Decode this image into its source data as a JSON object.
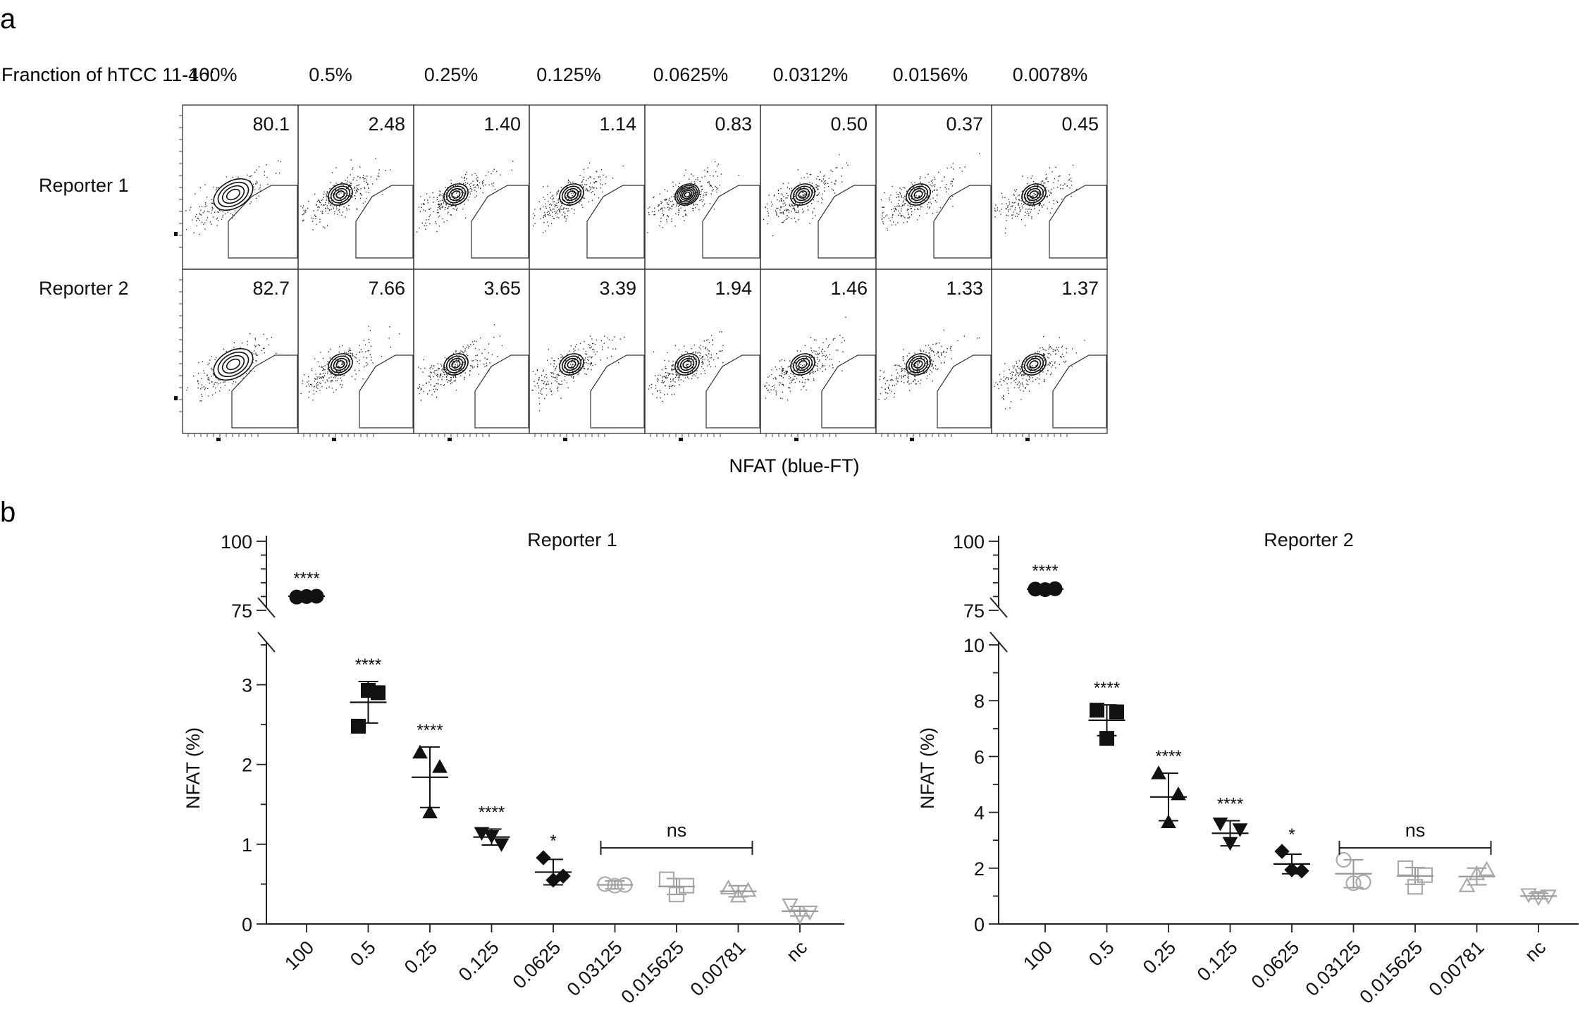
{
  "panel_a": {
    "label": "a",
    "fraction_label": "Franction of hTCC 11-46:",
    "columns": [
      "100%",
      "0.5%",
      "0.25%",
      "0.125%",
      "0.0625%",
      "0.0312%",
      "0.0156%",
      "0.0078%"
    ],
    "rows": [
      {
        "label": "Reporter 1",
        "values": [
          "80.1",
          "2.48",
          "1.40",
          "1.14",
          "0.83",
          "0.50",
          "0.37",
          "0.45"
        ]
      },
      {
        "label": "Reporter 2",
        "values": [
          "82.7",
          "7.66",
          "3.65",
          "3.39",
          "1.94",
          "1.46",
          "1.33",
          "1.37"
        ]
      }
    ],
    "xlabel": "NFAT (blue-FT)"
  },
  "panel_b": {
    "label": "b",
    "ns_label": "ns"
  },
  "chart_data": [
    {
      "type": "scatter",
      "title": "Reporter 1",
      "xlabel": "",
      "ylabel": "NFAT (%)",
      "categories": [
        "100",
        "0.5",
        "0.25",
        "0.125",
        "0.0625",
        "0.03125",
        "0.015625",
        "0.00781",
        "nc"
      ],
      "upper_axis": {
        "ylim": [
          75,
          100
        ],
        "ticks": [
          "75",
          "100"
        ]
      },
      "lower_axis": {
        "ylim": [
          0,
          3.5
        ],
        "ticks": [
          "0",
          "1",
          "2",
          "3"
        ]
      },
      "means": [
        80.1,
        2.78,
        1.84,
        1.09,
        0.65,
        0.49,
        0.47,
        0.41,
        0.16
      ],
      "sd": [
        0.4,
        0.26,
        0.38,
        0.1,
        0.16,
        0.05,
        0.1,
        0.07,
        0.06
      ],
      "points": [
        [
          79.8,
          80.0,
          80.1
        ],
        [
          2.48,
          2.93,
          2.9
        ],
        [
          2.15,
          1.4,
          1.97
        ],
        [
          1.14,
          1.1,
          1.0
        ],
        [
          0.83,
          0.55,
          0.6
        ],
        [
          0.5,
          0.48,
          0.49
        ],
        [
          0.56,
          0.37,
          0.48
        ],
        [
          0.45,
          0.35,
          0.42
        ],
        [
          0.24,
          0.1,
          0.15
        ]
      ],
      "markers": [
        "circle",
        "square",
        "triangle",
        "triangle-down",
        "diamond",
        "circle-open",
        "square-open",
        "triangle-open",
        "triangle-down-open"
      ],
      "significance": [
        "****",
        "****",
        "****",
        "****",
        "*",
        "",
        "",
        "",
        ""
      ],
      "bracket": {
        "from": "0.03125",
        "to": "0.00781",
        "label": "ns"
      }
    },
    {
      "type": "scatter",
      "title": "Reporter 2",
      "xlabel": "",
      "ylabel": "NFAT (%)",
      "categories": [
        "100",
        "0.5",
        "0.25",
        "0.125",
        "0.0625",
        "0.03125",
        "0.015625",
        "0.00781",
        "nc"
      ],
      "upper_axis": {
        "ylim": [
          75,
          100
        ],
        "ticks": [
          "75",
          "100"
        ]
      },
      "lower_axis": {
        "ylim": [
          0,
          10
        ],
        "ticks": [
          "0",
          "2",
          "4",
          "6",
          "8",
          "10"
        ]
      },
      "means": [
        82.7,
        7.3,
        4.55,
        3.25,
        2.15,
        1.8,
        1.72,
        1.7,
        1.0
      ],
      "sd": [
        0.4,
        0.55,
        0.85,
        0.45,
        0.35,
        0.5,
        0.3,
        0.3,
        0.1
      ],
      "points": [
        [
          82.7,
          82.5,
          82.8
        ],
        [
          7.66,
          6.65,
          7.6
        ],
        [
          5.4,
          3.65,
          4.65
        ],
        [
          3.6,
          2.9,
          3.39
        ],
        [
          2.6,
          1.94,
          1.9
        ],
        [
          2.3,
          1.46,
          1.5
        ],
        [
          2.0,
          1.33,
          1.75
        ],
        [
          1.37,
          1.8,
          1.95
        ],
        [
          1.05,
          0.95,
          1.0
        ]
      ],
      "markers": [
        "circle",
        "square",
        "triangle",
        "triangle-down",
        "diamond",
        "circle-open",
        "square-open",
        "triangle-open",
        "triangle-down-open"
      ],
      "significance": [
        "****",
        "****",
        "****",
        "****",
        "*",
        "",
        "",
        "",
        ""
      ],
      "bracket": {
        "from": "0.03125",
        "to": "0.00781",
        "label": "ns"
      }
    }
  ]
}
